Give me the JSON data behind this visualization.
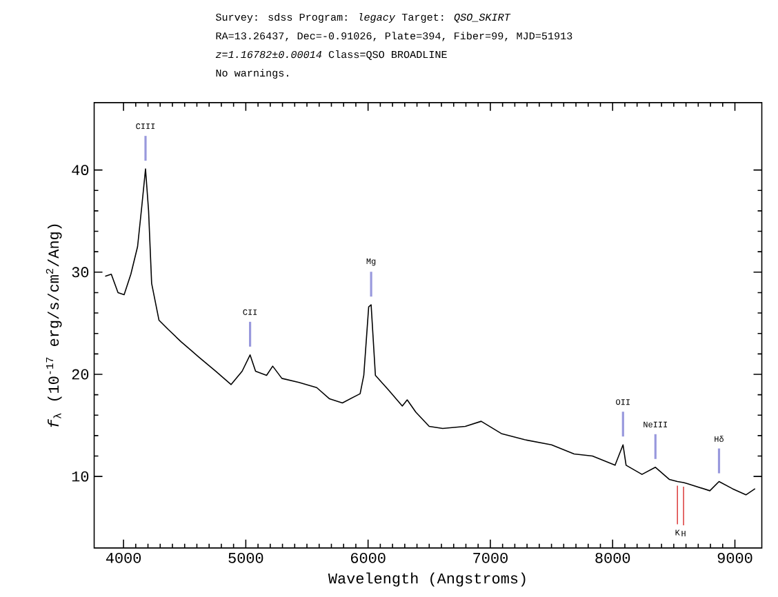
{
  "chart_data": {
    "type": "line",
    "title": "Survey: sdss Program: *legacy* Target: *QSO_SKIRT*",
    "subtitle": "RA=13.26437, Dec=-0.91026, Plate=394, Fiber=99, MJD=51913",
    "xlabel": "Wavelength (Angstroms)",
    "ylabel": "*f*$_{λ}$ (10$^{-17}$ erg/s/cm$^{2}$/Ang)",
    "xlim": [
      3760,
      9220
    ],
    "ylim": [
      3,
      46.6
    ],
    "xticks": [
      4000,
      5000,
      6000,
      7000,
      8000,
      9000
    ],
    "yticks": [
      10,
      20,
      30,
      40
    ],
    "grid": false,
    "marker": "none",
    "line_style": "solid",
    "series": [
      {
        "color": "#000000",
        "x": [
          3850,
          3900,
          3955,
          4005,
          4060,
          4115,
          4150,
          4180,
          4205,
          4230,
          4290,
          4365,
          4470,
          4615,
          4755,
          4880,
          4970,
          5035,
          5080,
          5170,
          5220,
          5295,
          5435,
          5580,
          5685,
          5790,
          5935,
          5965,
          6005,
          6025,
          6060,
          6165,
          6280,
          6320,
          6390,
          6500,
          6610,
          6795,
          6925,
          7090,
          7280,
          7500,
          7685,
          7835,
          8020,
          8085,
          8110,
          8240,
          8350,
          8465,
          8530,
          8580,
          8610,
          8795,
          8870,
          8980,
          9090,
          9165
        ],
        "values": [
          29.6,
          29.8,
          28,
          27.8,
          29.8,
          32.5,
          36.5,
          40.1,
          36,
          28.9,
          25.3,
          24.4,
          23.2,
          21.7,
          20.3,
          19,
          20.3,
          21.9,
          20.3,
          19.9,
          20.8,
          19.6,
          19.2,
          18.7,
          17.6,
          17.2,
          18.1,
          19.9,
          26.6,
          26.8,
          19.9,
          18.5,
          16.9,
          17.5,
          16.3,
          14.9,
          14.7,
          14.9,
          15.4,
          14.2,
          13.6,
          13.1,
          12.2,
          12,
          11.1,
          13.1,
          11.1,
          10.2,
          10.9,
          9.7,
          9.5,
          9.4,
          9.3,
          8.6,
          9.5,
          8.8,
          8.2,
          8.8
        ]
      }
    ],
    "annotations": [
      "*z=1.16782±0.00014* Class=QSO BROADLINE",
      "No warnings.",
      {
        "text": "CIII",
        "x": 4180,
        "y": 40.1
      },
      {
        "text": "CII",
        "x": 5035,
        "y": 21.9
      },
      {
        "text": "Mg",
        "x": 6025,
        "y": 26.8
      },
      {
        "text": "OII",
        "x": 8085,
        "y": 13.1
      },
      {
        "text": "NeIII",
        "x": 8350,
        "y": 10.9
      },
      {
        "text": "Hδ",
        "x": 8870,
        "y": 9.5
      },
      {
        "text": "K",
        "x": 8530,
        "y": 9.5
      },
      {
        "text": "H",
        "x": 8580,
        "y": 9.4
      }
    ]
  }
}
